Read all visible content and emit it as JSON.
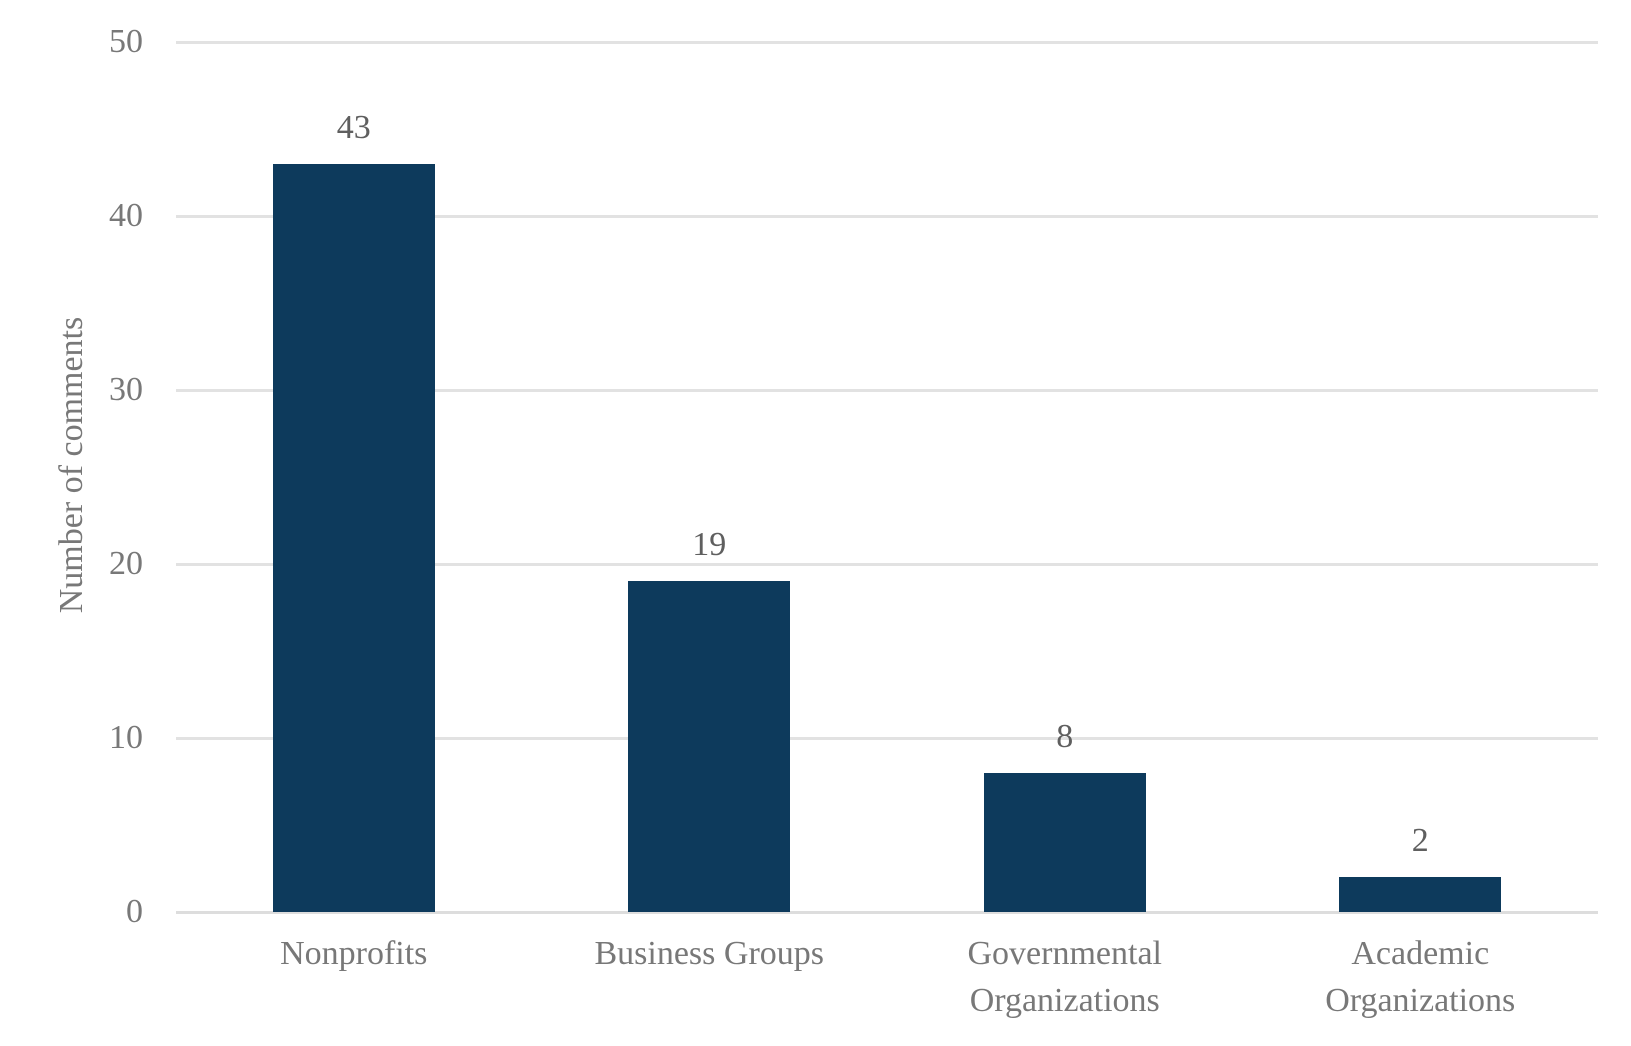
{
  "chart_data": {
    "type": "bar",
    "categories": [
      "Nonprofits",
      "Business Groups",
      "Governmental Organizations",
      "Academic Organizations"
    ],
    "values": [
      43,
      19,
      8,
      2
    ],
    "data_labels": [
      "43",
      "19",
      "8",
      "2"
    ],
    "title": "",
    "xlabel": "",
    "ylabel": "Number of comments",
    "ylim": [
      0,
      50
    ],
    "yticks": [
      "0",
      "10",
      "20",
      "30",
      "40",
      "50"
    ],
    "grid": "horizontal gridlines on, no vertical gridlines",
    "legend": "none",
    "bar_color": "#0d3a5c",
    "gridline_color": "#e2e2e2",
    "axis_text_color": "#787878",
    "data_label_color": "#5f5f5f",
    "background_color": "#ffffff"
  }
}
